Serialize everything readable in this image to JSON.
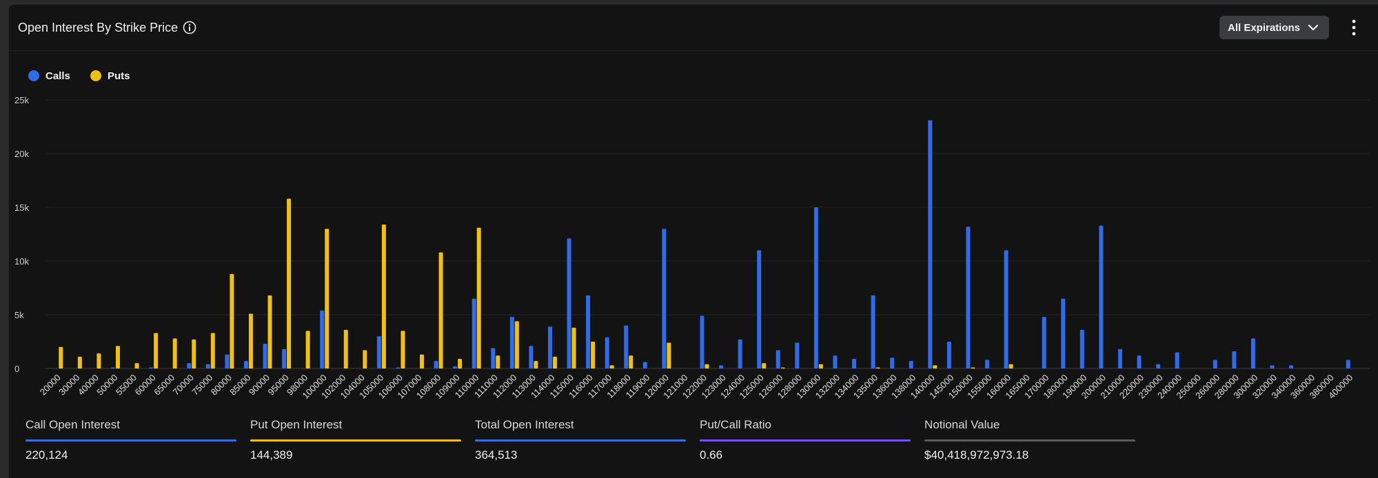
{
  "header": {
    "title": "Open Interest By Strike Price",
    "info_icon": "info-icon",
    "expirations_label": "All Expirations",
    "dropdown_icon": "chevron-down-icon",
    "menu_icon": "kebab-menu-icon"
  },
  "legend": [
    {
      "label": "Calls",
      "color": "#2f6bea"
    },
    {
      "label": "Puts",
      "color": "#f2c00f"
    }
  ],
  "chart_data": {
    "type": "bar",
    "title": "Open Interest By Strike Price",
    "xlabel": "",
    "ylabel": "",
    "ylim": [
      0,
      25000
    ],
    "y_ticks": [
      "0",
      "5k",
      "10k",
      "15k",
      "20k",
      "25k"
    ],
    "grid": "horizontal",
    "legend_position": "top-left",
    "categories": [
      "20000",
      "30000",
      "40000",
      "50000",
      "55000",
      "60000",
      "65000",
      "70000",
      "75000",
      "80000",
      "85000",
      "90000",
      "95000",
      "98000",
      "100000",
      "102000",
      "104000",
      "105000",
      "106000",
      "107000",
      "108000",
      "109000",
      "110000",
      "111000",
      "112000",
      "113000",
      "114000",
      "115000",
      "116000",
      "117000",
      "118000",
      "119000",
      "120000",
      "121000",
      "122000",
      "123000",
      "124000",
      "125000",
      "126000",
      "128000",
      "130000",
      "132000",
      "134000",
      "135000",
      "136000",
      "138000",
      "140000",
      "145000",
      "150000",
      "155000",
      "160000",
      "165000",
      "170000",
      "180000",
      "190000",
      "200000",
      "210000",
      "220000",
      "230000",
      "240000",
      "250000",
      "260000",
      "280000",
      "300000",
      "320000",
      "340000",
      "360000",
      "380000",
      "400000"
    ],
    "series": [
      {
        "name": "Calls",
        "color": "#2f6bea",
        "values": [
          0,
          0,
          0,
          100,
          0,
          100,
          0,
          500,
          400,
          1300,
          700,
          2300,
          1800,
          0,
          5400,
          0,
          0,
          3000,
          100,
          0,
          700,
          200,
          6500,
          1900,
          4800,
          2100,
          3900,
          12100,
          6800,
          2900,
          4000,
          600,
          13000,
          0,
          4900,
          300,
          2700,
          11000,
          1700,
          2400,
          15000,
          1200,
          900,
          6800,
          1000,
          700,
          23100,
          2500,
          13200,
          800,
          11000,
          0,
          4800,
          6500,
          3600,
          13300,
          1800,
          1200,
          400,
          1500,
          0,
          800,
          1600,
          2800,
          300,
          300,
          0,
          0,
          800
        ]
      },
      {
        "name": "Puts",
        "color": "#f2c00f",
        "values": [
          2000,
          1100,
          1400,
          2100,
          500,
          3300,
          2800,
          2700,
          3300,
          8800,
          5100,
          6800,
          15800,
          3500,
          13000,
          3600,
          1700,
          13400,
          3500,
          1300,
          10800,
          900,
          13100,
          1200,
          4400,
          700,
          1100,
          3800,
          2500,
          300,
          1200,
          0,
          2400,
          0,
          400,
          0,
          0,
          500,
          100,
          0,
          400,
          0,
          0,
          100,
          0,
          0,
          300,
          0,
          100,
          0,
          400,
          0,
          0,
          0,
          0,
          0,
          0,
          0,
          0,
          0,
          0,
          0,
          0,
          0,
          0,
          0,
          0,
          0,
          0
        ]
      }
    ]
  },
  "stats": [
    {
      "label": "Call Open Interest",
      "value": "220,124",
      "color": "#3a6fe0"
    },
    {
      "label": "Put Open Interest",
      "value": "144,389",
      "color": "#eec21a"
    },
    {
      "label": "Total Open Interest",
      "value": "364,513",
      "color": "#3a6fe0"
    },
    {
      "label": "Put/Call Ratio",
      "value": "0.66",
      "color": "#7a4ff0"
    },
    {
      "label": "Notional Value",
      "value": "$40,418,972,973.18",
      "color": "#5a5a5a"
    }
  ]
}
